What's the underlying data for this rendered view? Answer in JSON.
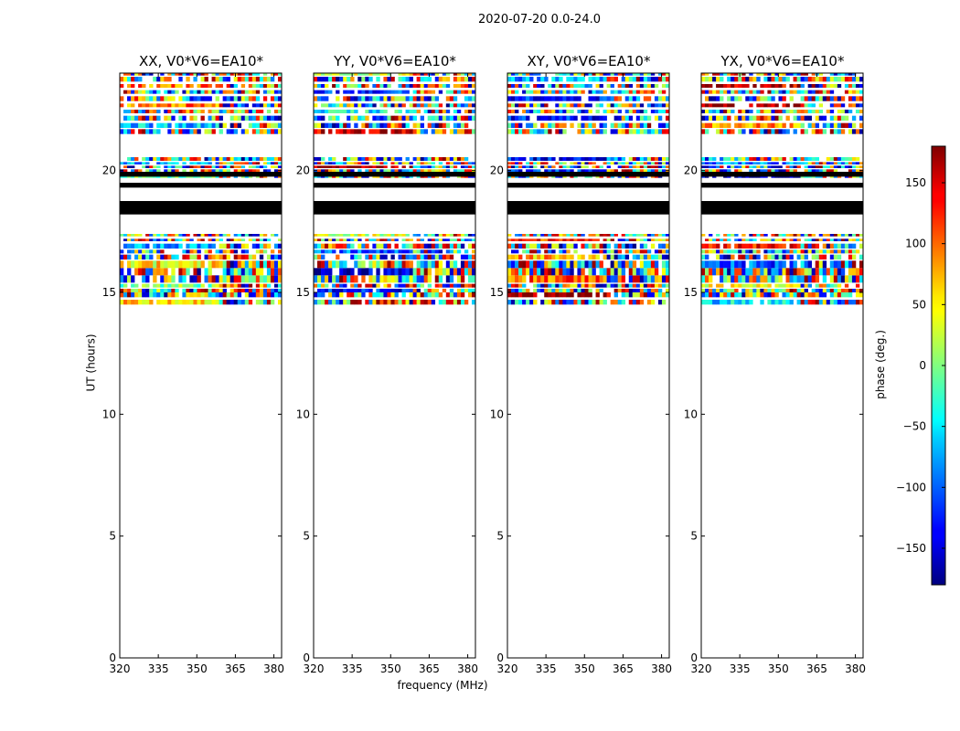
{
  "figure": {
    "suptitle": "2020-07-20 0.0-24.0",
    "xlabel": "frequency (MHz)",
    "ylabel": "UT (hours)",
    "colorbar_label": "phase (deg.)"
  },
  "chart_data": {
    "type": "heatmap",
    "panels": [
      {
        "title": "XX, V0*V6=EA10*"
      },
      {
        "title": "YY, V0*V6=EA10*"
      },
      {
        "title": "XY, V0*V6=EA10*"
      },
      {
        "title": "YX, V0*V6=EA10*"
      }
    ],
    "xlim": [
      320,
      383
    ],
    "ylim": [
      0,
      24
    ],
    "x_ticks": [
      320,
      335,
      350,
      365,
      380
    ],
    "y_ticks": [
      0,
      5,
      10,
      15,
      20
    ],
    "colorbar": {
      "min": -180,
      "max": 180,
      "ticks": [
        -150,
        -100,
        -50,
        0,
        50,
        100,
        150
      ],
      "tick_labels": [
        "−150",
        "−100",
        "−50",
        "0",
        "50",
        "100",
        "150"
      ],
      "colormap": "jet"
    },
    "data_rows_ut": [
      [
        14.5,
        14.7
      ],
      [
        14.8,
        15.0
      ],
      [
        15.0,
        15.15
      ],
      [
        15.2,
        15.35
      ],
      [
        15.4,
        15.7
      ],
      [
        15.7,
        16.0
      ],
      [
        16.0,
        16.3
      ],
      [
        16.35,
        16.55
      ],
      [
        16.6,
        16.75
      ],
      [
        16.8,
        17.0
      ],
      [
        17.1,
        17.2
      ],
      [
        17.3,
        17.4
      ],
      [
        19.7,
        19.85
      ],
      [
        19.95,
        20.05
      ],
      [
        20.1,
        20.2
      ],
      [
        20.25,
        20.35
      ],
      [
        20.4,
        20.55
      ],
      [
        21.5,
        21.7
      ],
      [
        21.75,
        21.95
      ],
      [
        22.05,
        22.25
      ],
      [
        22.35,
        22.5
      ],
      [
        22.6,
        22.75
      ],
      [
        22.85,
        23.05
      ],
      [
        23.15,
        23.3
      ],
      [
        23.4,
        23.55
      ],
      [
        23.65,
        23.85
      ],
      [
        23.9,
        24.0
      ]
    ],
    "black_bands_ut": [
      [
        18.2,
        18.75
      ],
      [
        19.3,
        19.5
      ],
      [
        19.75,
        19.95
      ]
    ]
  }
}
